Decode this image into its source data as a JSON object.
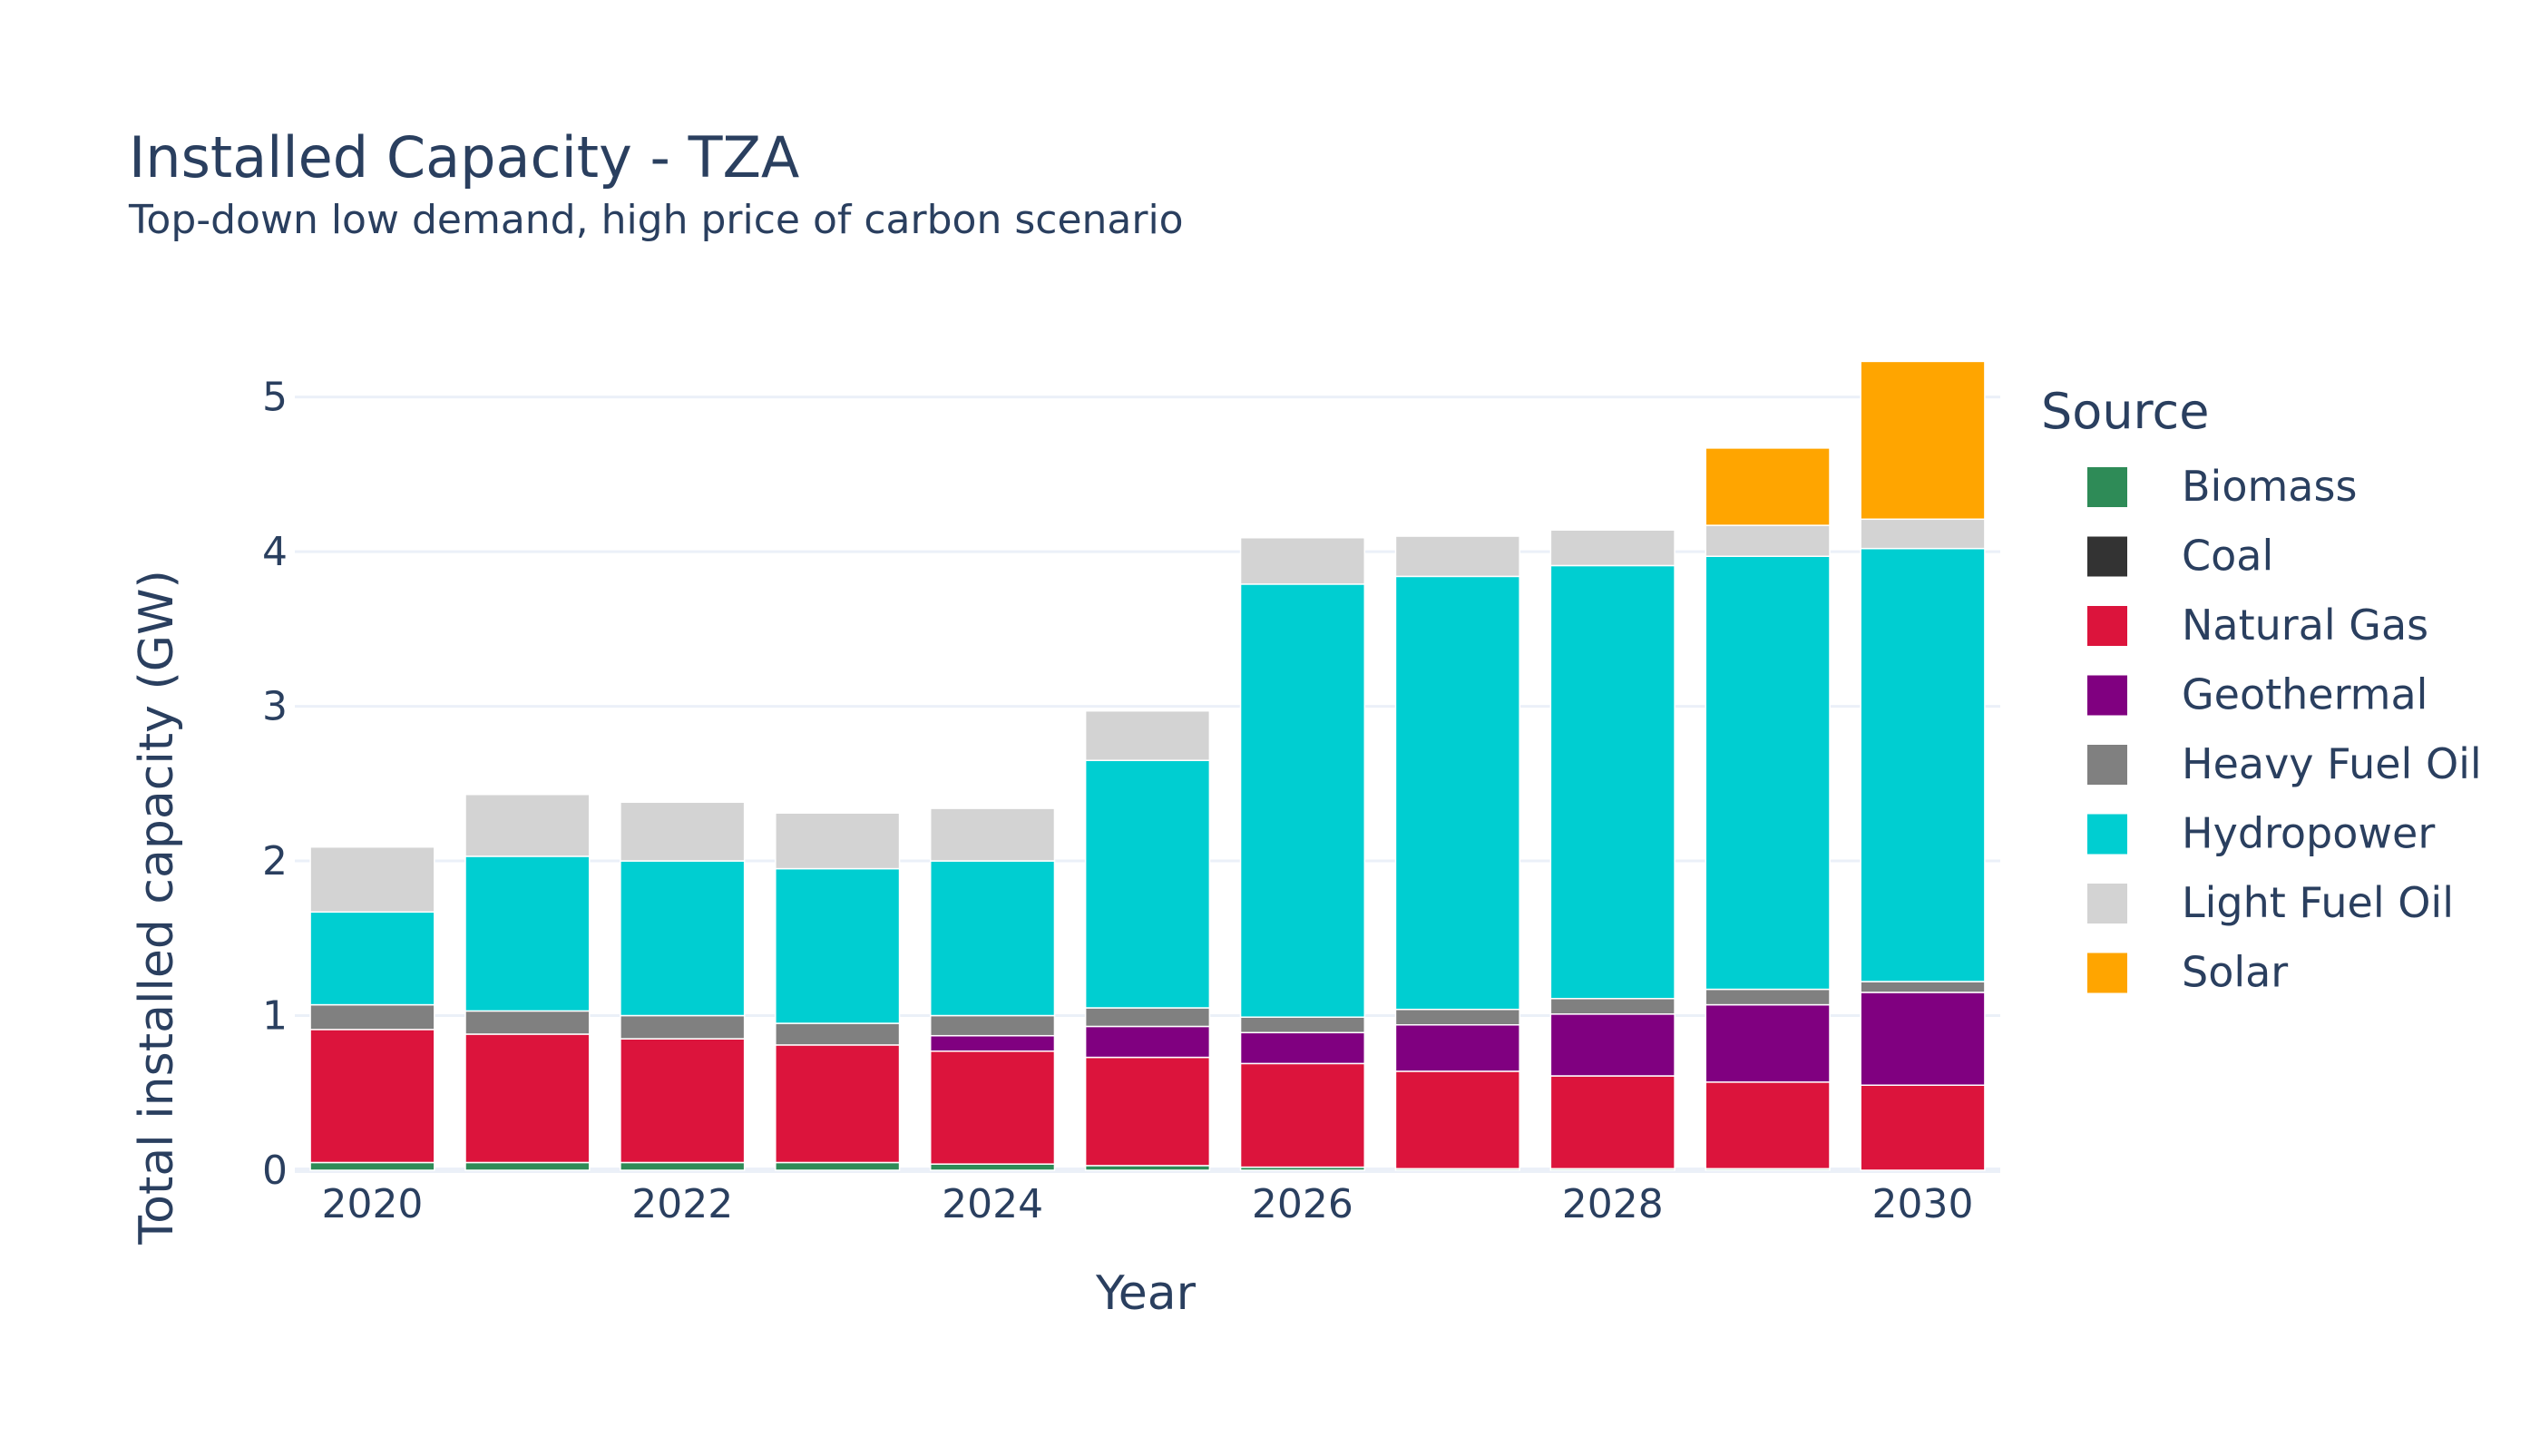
{
  "chart_data": {
    "type": "bar",
    "stacked": true,
    "title": "Installed Capacity - TZA",
    "subtitle": "Top-down low demand, high price of carbon scenario",
    "xlabel": "Year",
    "ylabel": "Total installed capacity (GW)",
    "ylim": [
      0,
      5.25
    ],
    "yticks": [
      0,
      1,
      2,
      3,
      4,
      5
    ],
    "xticks": [
      2020,
      2022,
      2024,
      2026,
      2028,
      2030
    ],
    "grid": true,
    "legend_title": "Source",
    "legend_position": "right",
    "categories": [
      2020,
      2021,
      2022,
      2023,
      2024,
      2025,
      2026,
      2027,
      2028,
      2029,
      2030
    ],
    "series": [
      {
        "name": "Biomass",
        "color": "#2e8b57",
        "values": [
          0.05,
          0.05,
          0.05,
          0.05,
          0.04,
          0.03,
          0.02,
          0.01,
          0.01,
          0.01,
          0.0
        ]
      },
      {
        "name": "Coal",
        "color": "#333333",
        "values": [
          0.0,
          0.0,
          0.0,
          0.0,
          0.0,
          0.0,
          0.0,
          0.0,
          0.0,
          0.0,
          0.0
        ]
      },
      {
        "name": "Natural Gas",
        "color": "#dc143c",
        "values": [
          0.86,
          0.83,
          0.8,
          0.76,
          0.73,
          0.7,
          0.67,
          0.63,
          0.6,
          0.56,
          0.55
        ]
      },
      {
        "name": "Geothermal",
        "color": "#800080",
        "values": [
          0.0,
          0.0,
          0.0,
          0.0,
          0.1,
          0.2,
          0.2,
          0.3,
          0.4,
          0.5,
          0.6
        ]
      },
      {
        "name": "Heavy Fuel Oil",
        "color": "#808080",
        "values": [
          0.16,
          0.15,
          0.15,
          0.14,
          0.13,
          0.12,
          0.1,
          0.1,
          0.1,
          0.1,
          0.07
        ]
      },
      {
        "name": "Hydropower",
        "color": "#00ced1",
        "values": [
          0.6,
          1.0,
          1.0,
          1.0,
          1.0,
          1.6,
          2.8,
          2.8,
          2.8,
          2.8,
          2.8
        ]
      },
      {
        "name": "Light Fuel Oil",
        "color": "#d3d3d3",
        "values": [
          0.42,
          0.4,
          0.38,
          0.36,
          0.34,
          0.32,
          0.3,
          0.26,
          0.23,
          0.2,
          0.19
        ]
      },
      {
        "name": "Solar",
        "color": "#ffa500",
        "values": [
          0.0,
          0.0,
          0.0,
          0.0,
          0.0,
          0.0,
          0.0,
          0.0,
          0.0,
          0.5,
          1.02
        ]
      }
    ]
  }
}
